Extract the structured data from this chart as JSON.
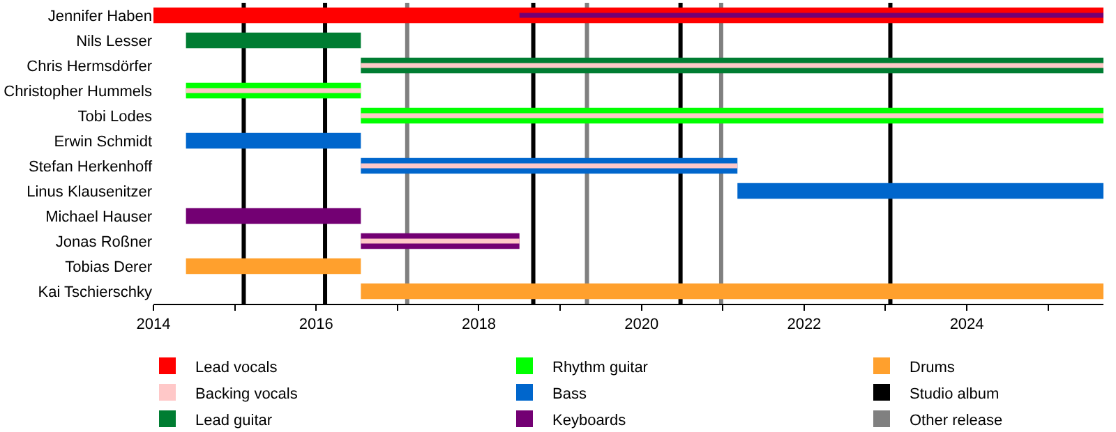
{
  "chart_data": {
    "type": "bar",
    "orientation": "horizontal",
    "legend": "bottom",
    "grid": false,
    "categories": [
      "Jennifer Haben",
      "Nils Lesser",
      "Chris Hermsdörfer",
      "Christopher Hummels",
      "Tobi Lodes",
      "Erwin Schmidt",
      "Stefan Herkenhoff",
      "Linus Klausenitzer",
      "Michael Hauser",
      "Jonas Roßner",
      "Tobias Derer",
      "Kai Tschierschky"
    ],
    "xlim": [
      2014,
      2025.68
    ],
    "xticks": [
      2014,
      {
        "value": 2015,
        "label": null
      },
      2016,
      {
        "value": 2017,
        "label": null
      },
      2018,
      {
        "value": 2019,
        "label": null
      },
      2020,
      {
        "value": 2021,
        "label": null
      },
      2022,
      {
        "value": 2023,
        "label": null
      },
      2024,
      {
        "value": 2025,
        "label": null
      }
    ],
    "series": [
      {
        "name": "Lead vocals",
        "color": "#ff0000",
        "base": [
          2014,
          null,
          null,
          null,
          null,
          null,
          null,
          null,
          null,
          null,
          null,
          null
        ],
        "values": [
          11.68,
          null,
          null,
          null,
          null,
          null,
          null,
          null,
          null,
          null,
          null,
          null
        ]
      },
      {
        "name": "Backing vocals",
        "color": "#ffc8c8",
        "base": [
          null,
          null,
          2016.55,
          2014.4,
          2016.55,
          null,
          2016.55,
          null,
          null,
          2016.55,
          null,
          null
        ],
        "values": [
          null,
          null,
          9.13,
          2.15,
          9.13,
          null,
          4.63,
          null,
          null,
          1.95,
          null,
          null
        ]
      },
      {
        "name": "Lead guitar",
        "color": "#007d32",
        "base": [
          null,
          2014.4,
          2016.55,
          null,
          null,
          null,
          null,
          null,
          null,
          null,
          null,
          null
        ],
        "values": [
          null,
          2.15,
          9.13,
          null,
          null,
          null,
          null,
          null,
          null,
          null,
          null,
          null
        ]
      },
      {
        "name": "Rhythm guitar",
        "color": "#00ff00",
        "base": [
          null,
          null,
          null,
          2014.4,
          2016.55,
          null,
          null,
          null,
          null,
          null,
          null,
          null
        ],
        "values": [
          null,
          null,
          null,
          2.15,
          9.13,
          null,
          null,
          null,
          null,
          null,
          null,
          null
        ]
      },
      {
        "name": "Bass",
        "color": "#0066cc",
        "base": [
          null,
          null,
          null,
          null,
          null,
          2014.4,
          2016.55,
          2021.18,
          null,
          null,
          null,
          null
        ],
        "values": [
          null,
          null,
          null,
          null,
          null,
          2.15,
          4.63,
          4.5,
          null,
          null,
          null,
          null
        ]
      },
      {
        "name": "Keyboards",
        "color": "#730073",
        "base": [
          2018.5,
          null,
          null,
          null,
          null,
          null,
          null,
          null,
          2014.4,
          2016.55,
          null,
          null
        ],
        "values": [
          7.18,
          null,
          null,
          null,
          null,
          null,
          null,
          null,
          2.15,
          1.95,
          null,
          null
        ]
      },
      {
        "name": "Drums",
        "color": "#ffa02d",
        "base": [
          null,
          null,
          null,
          null,
          null,
          null,
          null,
          null,
          null,
          null,
          2014.4,
          2016.55
        ],
        "values": [
          null,
          null,
          null,
          null,
          null,
          null,
          null,
          null,
          null,
          null,
          2.15,
          9.13
        ]
      }
    ],
    "ref_lines": [
      {
        "axis": "x",
        "value": 2015.11,
        "label": "Studio album",
        "color": "#000000"
      },
      {
        "axis": "x",
        "value": 2016.11,
        "color": "#000000"
      },
      {
        "axis": "x",
        "value": 2017.12,
        "label": "Other release",
        "color": "#808080"
      },
      {
        "axis": "x",
        "value": 2018.67,
        "color": "#000000"
      },
      {
        "axis": "x",
        "value": 2019.33,
        "color": "#808080"
      },
      {
        "axis": "x",
        "value": 2020.48,
        "color": "#000000"
      },
      {
        "axis": "x",
        "value": 2020.98,
        "color": "#808080"
      },
      {
        "axis": "x",
        "value": 2023.06,
        "color": "#000000"
      }
    ]
  }
}
